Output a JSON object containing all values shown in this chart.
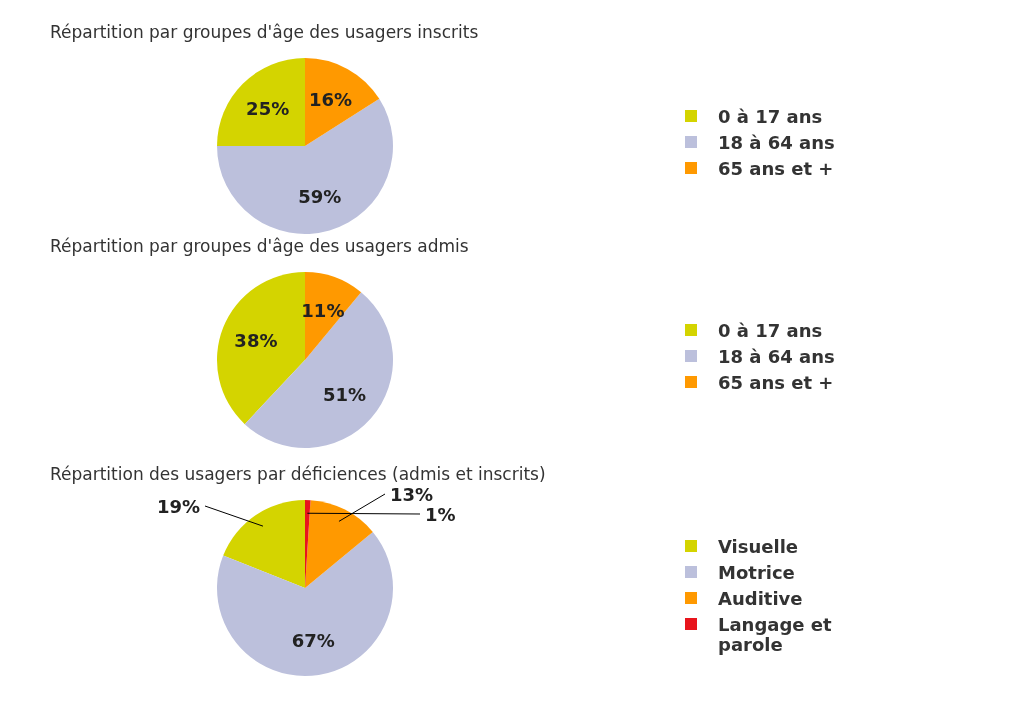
{
  "chart_data": [
    {
      "type": "pie",
      "title": "Répartition par groupes d'âge des usagers inscrits",
      "categories": [
        "0 à 17 ans",
        "18 à 64 ans",
        "65 ans et +"
      ],
      "values": [
        25,
        59,
        16
      ],
      "value_labels": [
        "25%",
        "59%",
        "16%"
      ],
      "colors": [
        "#d4d400",
        "#bcc0dc",
        "#ff9900"
      ],
      "legend": "right"
    },
    {
      "type": "pie",
      "title": "Répartition par groupes d'âge des usagers admis",
      "categories": [
        "0 à 17 ans",
        "18 à 64 ans",
        "65 ans et +"
      ],
      "values": [
        38,
        51,
        11
      ],
      "value_labels": [
        "38%",
        "51%",
        "11%"
      ],
      "colors": [
        "#d4d400",
        "#bcc0dc",
        "#ff9900"
      ],
      "legend": "right"
    },
    {
      "type": "pie",
      "title": "Répartition des usagers par déficiences (admis et inscrits)",
      "categories": [
        "Visuelle",
        "Motrice",
        "Auditive",
        "Langage et parole"
      ],
      "values": [
        19,
        67,
        13,
        1
      ],
      "value_labels": [
        "19%",
        "67%",
        "13%",
        "1%"
      ],
      "colors": [
        "#d4d400",
        "#bcc0dc",
        "#ff9900",
        "#e8141c"
      ],
      "legend": "right"
    }
  ]
}
